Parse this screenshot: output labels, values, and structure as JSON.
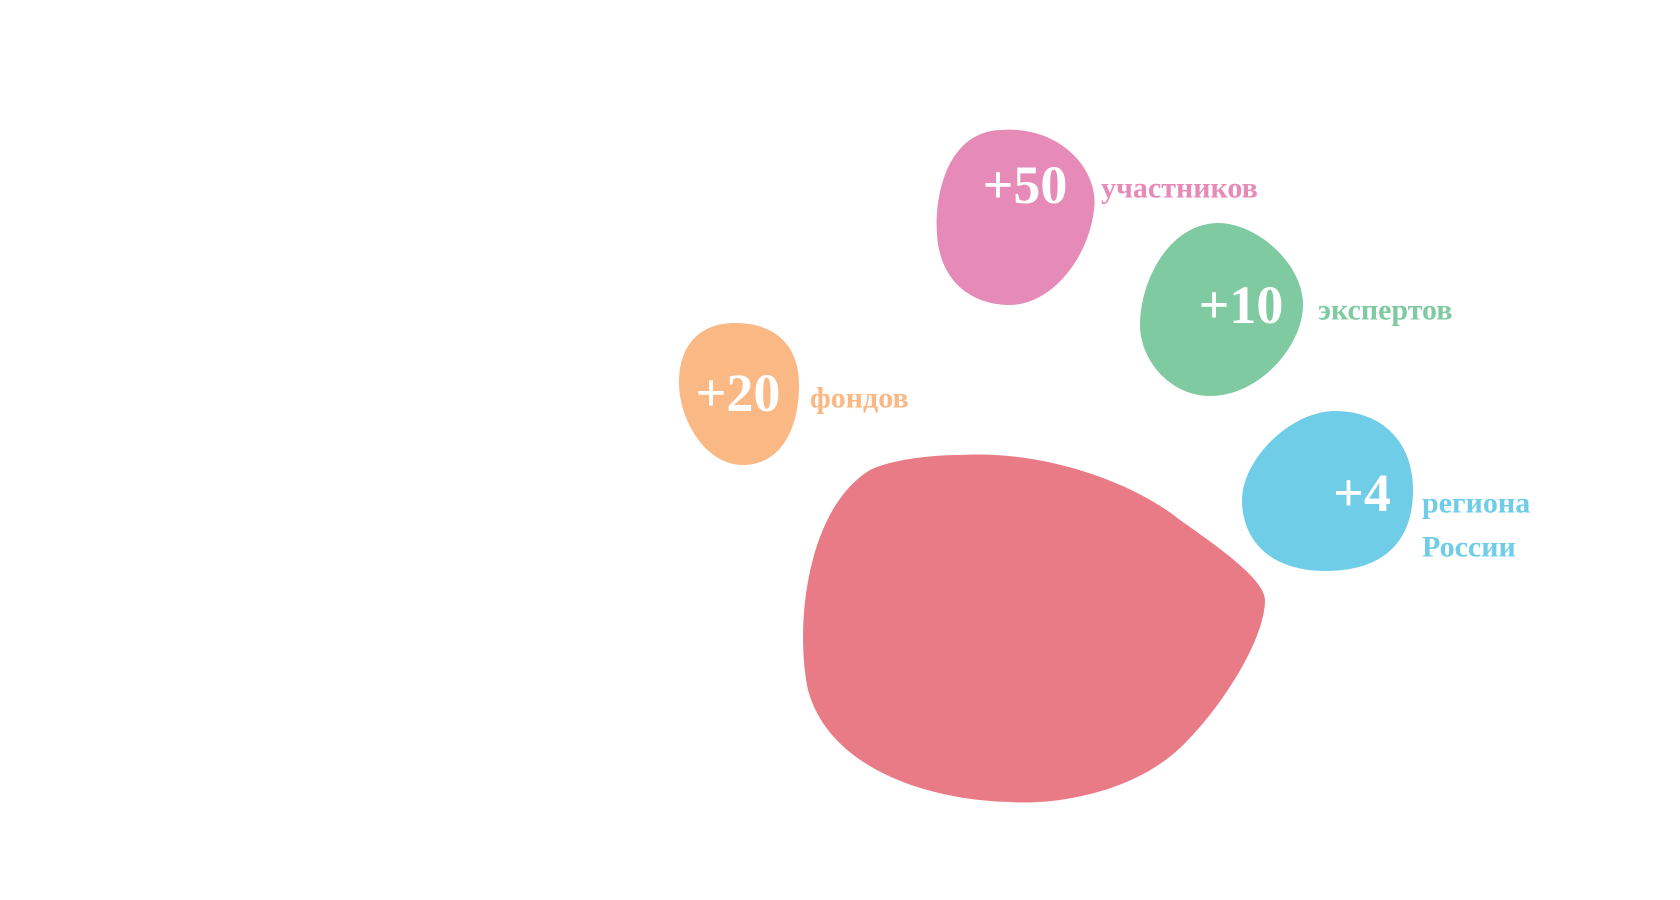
{
  "stats": [
    {
      "number": "+50",
      "label": "участников"
    },
    {
      "number": "+10",
      "label": "экспертов"
    },
    {
      "number": "+20",
      "label": "фондов"
    },
    {
      "number": "+4",
      "label": "региона России"
    }
  ]
}
